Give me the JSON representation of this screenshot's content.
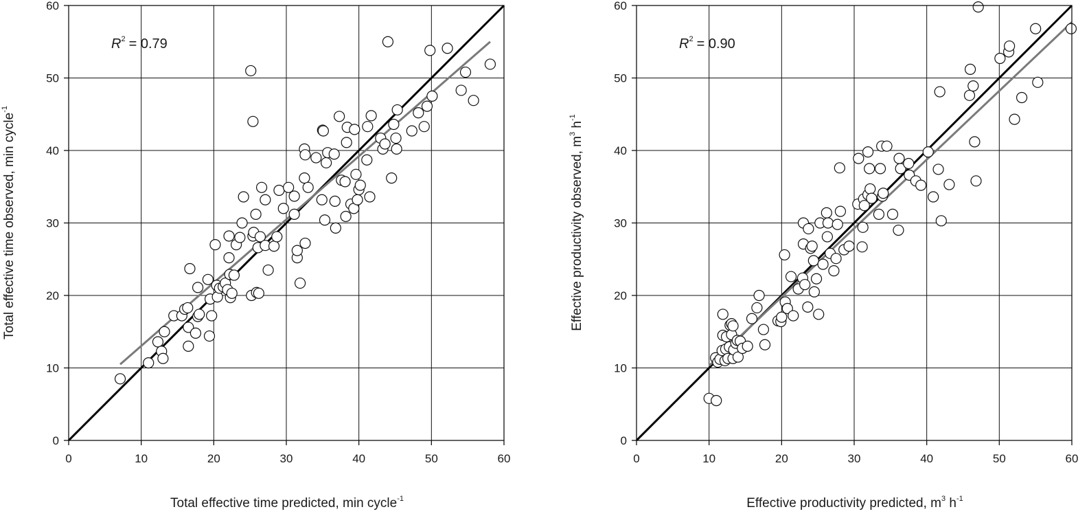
{
  "chart_data": [
    {
      "type": "scatter",
      "xlabel": "Total effective time predicted, min cycle",
      "xlabel_sup": "-1",
      "ylabel": "Total effective time observed, min cycle",
      "ylabel_sup": "-1",
      "xlim": [
        0,
        60
      ],
      "ylim": [
        0,
        60
      ],
      "xticks": [
        "0",
        "10",
        "20",
        "30",
        "40",
        "50",
        "60"
      ],
      "yticks": [
        "0",
        "10",
        "20",
        "30",
        "40",
        "50",
        "60"
      ],
      "grid": true,
      "annotation": {
        "r2_symbol": "R",
        "r2_sup": "2",
        "r2_value": "= 0.79"
      },
      "lines": [
        {
          "kind": "1:1",
          "color": "#000000",
          "x": [
            0,
            60
          ],
          "y": [
            0,
            60
          ]
        },
        {
          "kind": "fit",
          "color": "#7a7a7a",
          "x": [
            7.1,
            58.1
          ],
          "y": [
            10.5,
            55.0
          ]
        }
      ],
      "points": [
        [
          7.1,
          8.5
        ],
        [
          11.0,
          10.7
        ],
        [
          12.3,
          13.6
        ],
        [
          12.8,
          12.3
        ],
        [
          13.0,
          11.3
        ],
        [
          13.2,
          15.0
        ],
        [
          14.5,
          17.2
        ],
        [
          15.6,
          17.2
        ],
        [
          16.0,
          18.1
        ],
        [
          16.4,
          18.3
        ],
        [
          16.5,
          15.6
        ],
        [
          16.5,
          13.0
        ],
        [
          16.7,
          23.7
        ],
        [
          17.5,
          14.8
        ],
        [
          17.8,
          17.1
        ],
        [
          17.8,
          21.1
        ],
        [
          18.0,
          17.4
        ],
        [
          19.2,
          22.2
        ],
        [
          19.4,
          14.4
        ],
        [
          19.5,
          19.5
        ],
        [
          19.7,
          17.2
        ],
        [
          20.2,
          27.0
        ],
        [
          20.4,
          21.4
        ],
        [
          20.5,
          19.8
        ],
        [
          20.8,
          21.0
        ],
        [
          21.3,
          21.2
        ],
        [
          21.6,
          21.7
        ],
        [
          21.9,
          20.8
        ],
        [
          22.1,
          25.2
        ],
        [
          22.1,
          28.2
        ],
        [
          22.2,
          22.9
        ],
        [
          22.3,
          19.7
        ],
        [
          22.5,
          20.3
        ],
        [
          22.8,
          22.8
        ],
        [
          23.1,
          27.0
        ],
        [
          23.6,
          28.0
        ],
        [
          23.9,
          30.0
        ],
        [
          24.1,
          33.6
        ],
        [
          25.1,
          51.0
        ],
        [
          25.2,
          20.0
        ],
        [
          25.4,
          44.0
        ],
        [
          25.4,
          28.2
        ],
        [
          25.5,
          28.7
        ],
        [
          25.8,
          31.2
        ],
        [
          25.9,
          20.4
        ],
        [
          26.1,
          26.6
        ],
        [
          26.2,
          20.3
        ],
        [
          26.4,
          28.1
        ],
        [
          26.6,
          34.9
        ],
        [
          27.1,
          33.2
        ],
        [
          27.1,
          26.9
        ],
        [
          27.5,
          23.5
        ],
        [
          28.3,
          26.8
        ],
        [
          28.7,
          28.1
        ],
        [
          29.0,
          34.5
        ],
        [
          29.6,
          32.0
        ],
        [
          30.3,
          34.9
        ],
        [
          31.1,
          33.7
        ],
        [
          31.1,
          31.2
        ],
        [
          31.5,
          25.2
        ],
        [
          31.5,
          26.2
        ],
        [
          31.9,
          21.7
        ],
        [
          32.5,
          36.2
        ],
        [
          32.5,
          40.2
        ],
        [
          32.6,
          27.2
        ],
        [
          32.6,
          39.4
        ],
        [
          33.0,
          34.9
        ],
        [
          34.1,
          39.0
        ],
        [
          34.9,
          33.2
        ],
        [
          35.0,
          42.8
        ],
        [
          35.1,
          42.7
        ],
        [
          35.3,
          30.4
        ],
        [
          35.5,
          38.3
        ],
        [
          35.7,
          39.7
        ],
        [
          36.6,
          39.5
        ],
        [
          36.7,
          33.0
        ],
        [
          36.8,
          29.3
        ],
        [
          37.3,
          44.7
        ],
        [
          37.6,
          35.9
        ],
        [
          38.1,
          35.7
        ],
        [
          38.2,
          30.9
        ],
        [
          38.3,
          41.1
        ],
        [
          38.4,
          43.2
        ],
        [
          38.9,
          32.6
        ],
        [
          39.3,
          32.0
        ],
        [
          39.4,
          42.9
        ],
        [
          39.6,
          36.7
        ],
        [
          39.8,
          33.2
        ],
        [
          40.0,
          34.6
        ],
        [
          40.2,
          35.2
        ],
        [
          41.1,
          38.7
        ],
        [
          41.2,
          43.3
        ],
        [
          41.5,
          33.6
        ],
        [
          41.7,
          44.8
        ],
        [
          43.0,
          41.7
        ],
        [
          43.3,
          40.2
        ],
        [
          43.6,
          40.9
        ],
        [
          44.0,
          55.0
        ],
        [
          44.5,
          36.2
        ],
        [
          44.8,
          43.6
        ],
        [
          45.1,
          41.7
        ],
        [
          45.2,
          40.2
        ],
        [
          45.3,
          45.6
        ],
        [
          47.3,
          42.7
        ],
        [
          48.2,
          45.2
        ],
        [
          49.0,
          43.3
        ],
        [
          49.4,
          46.1
        ],
        [
          49.8,
          53.8
        ],
        [
          50.1,
          47.5
        ],
        [
          52.2,
          54.1
        ],
        [
          54.1,
          48.3
        ],
        [
          54.7,
          50.8
        ],
        [
          55.8,
          46.9
        ],
        [
          58.1,
          51.9
        ]
      ]
    },
    {
      "type": "scatter",
      "xlabel": "Effective productivity predicted, m",
      "xlabel_sup": "3",
      "xlabel_tail": " h",
      "xlabel_tail_sup": "-1",
      "ylabel": "Effective productivity observed, m",
      "ylabel_sup": "3",
      "ylabel_tail": " h",
      "ylabel_tail_sup": "-1",
      "xlim": [
        0,
        60
      ],
      "ylim": [
        0,
        60
      ],
      "xticks": [
        "0",
        "10",
        "20",
        "30",
        "40",
        "50",
        "60"
      ],
      "yticks": [
        "0",
        "10",
        "20",
        "30",
        "40",
        "50",
        "60"
      ],
      "grid": true,
      "annotation": {
        "r2_symbol": "R",
        "r2_sup": "2",
        "r2_value": "= 0.90"
      },
      "lines": [
        {
          "kind": "1:1",
          "color": "#000000",
          "x": [
            0,
            60
          ],
          "y": [
            0,
            60
          ]
        },
        {
          "kind": "fit",
          "color": "#7a7a7a",
          "x": [
            10.0,
            60.0
          ],
          "y": [
            10.3,
            57.7
          ]
        }
      ],
      "points": [
        [
          10.0,
          5.8
        ],
        [
          11.0,
          5.5
        ],
        [
          10.9,
          11.4
        ],
        [
          11.2,
          10.8
        ],
        [
          11.5,
          11.2
        ],
        [
          11.8,
          12.4
        ],
        [
          11.9,
          14.5
        ],
        [
          11.9,
          17.4
        ],
        [
          12.2,
          11.0
        ],
        [
          12.3,
          12.6
        ],
        [
          12.4,
          14.3
        ],
        [
          12.6,
          11.3
        ],
        [
          12.8,
          12.9
        ],
        [
          12.9,
          15.9
        ],
        [
          13.1,
          14.6
        ],
        [
          13.1,
          16.1
        ],
        [
          13.3,
          11.3
        ],
        [
          13.3,
          15.8
        ],
        [
          13.4,
          12.5
        ],
        [
          13.7,
          13.4
        ],
        [
          13.9,
          13.8
        ],
        [
          14.0,
          11.5
        ],
        [
          14.3,
          13.7
        ],
        [
          14.6,
          12.7
        ],
        [
          15.3,
          13.0
        ],
        [
          15.9,
          16.8
        ],
        [
          16.6,
          18.3
        ],
        [
          16.9,
          20.0
        ],
        [
          17.5,
          15.3
        ],
        [
          17.7,
          13.2
        ],
        [
          19.5,
          16.5
        ],
        [
          19.9,
          16.4
        ],
        [
          20.0,
          17.0
        ],
        [
          20.4,
          25.6
        ],
        [
          20.5,
          19.1
        ],
        [
          20.8,
          18.2
        ],
        [
          21.3,
          22.6
        ],
        [
          21.6,
          17.2
        ],
        [
          22.3,
          20.9
        ],
        [
          22.9,
          22.4
        ],
        [
          23.0,
          27.1
        ],
        [
          23.0,
          30.0
        ],
        [
          23.2,
          21.5
        ],
        [
          23.6,
          18.4
        ],
        [
          23.7,
          29.2
        ],
        [
          24.0,
          26.5
        ],
        [
          24.2,
          26.8
        ],
        [
          24.4,
          24.8
        ],
        [
          24.5,
          20.5
        ],
        [
          24.8,
          22.3
        ],
        [
          25.1,
          17.4
        ],
        [
          25.3,
          30.0
        ],
        [
          25.7,
          24.3
        ],
        [
          26.2,
          31.4
        ],
        [
          26.3,
          28.1
        ],
        [
          26.4,
          30.0
        ],
        [
          26.7,
          25.8
        ],
        [
          27.2,
          23.4
        ],
        [
          27.5,
          25.1
        ],
        [
          27.7,
          29.8
        ],
        [
          28.0,
          37.6
        ],
        [
          28.1,
          31.6
        ],
        [
          28.6,
          26.3
        ],
        [
          29.3,
          26.8
        ],
        [
          30.5,
          32.6
        ],
        [
          30.6,
          38.9
        ],
        [
          31.1,
          26.7
        ],
        [
          31.2,
          29.4
        ],
        [
          31.3,
          33.3
        ],
        [
          31.4,
          32.4
        ],
        [
          31.9,
          39.8
        ],
        [
          31.9,
          33.9
        ],
        [
          32.1,
          37.5
        ],
        [
          32.2,
          34.7
        ],
        [
          32.4,
          33.4
        ],
        [
          33.4,
          31.2
        ],
        [
          33.6,
          37.5
        ],
        [
          33.8,
          40.6
        ],
        [
          33.9,
          33.7
        ],
        [
          34.0,
          34.1
        ],
        [
          34.5,
          40.6
        ],
        [
          35.3,
          31.2
        ],
        [
          36.1,
          29.0
        ],
        [
          36.2,
          38.9
        ],
        [
          36.4,
          37.5
        ],
        [
          37.5,
          38.2
        ],
        [
          37.6,
          36.6
        ],
        [
          38.5,
          35.8
        ],
        [
          39.2,
          35.2
        ],
        [
          40.2,
          39.8
        ],
        [
          40.9,
          33.6
        ],
        [
          41.6,
          37.4
        ],
        [
          41.8,
          48.1
        ],
        [
          42.0,
          30.3
        ],
        [
          43.1,
          35.3
        ],
        [
          45.9,
          47.6
        ],
        [
          46.0,
          51.2
        ],
        [
          46.4,
          48.9
        ],
        [
          46.6,
          41.2
        ],
        [
          46.8,
          35.8
        ],
        [
          47.1,
          59.8
        ],
        [
          50.1,
          52.7
        ],
        [
          51.3,
          53.6
        ],
        [
          51.4,
          54.4
        ],
        [
          52.1,
          44.3
        ],
        [
          53.1,
          47.3
        ],
        [
          55.0,
          56.8
        ],
        [
          55.3,
          49.4
        ],
        [
          59.9,
          56.8
        ]
      ]
    }
  ]
}
